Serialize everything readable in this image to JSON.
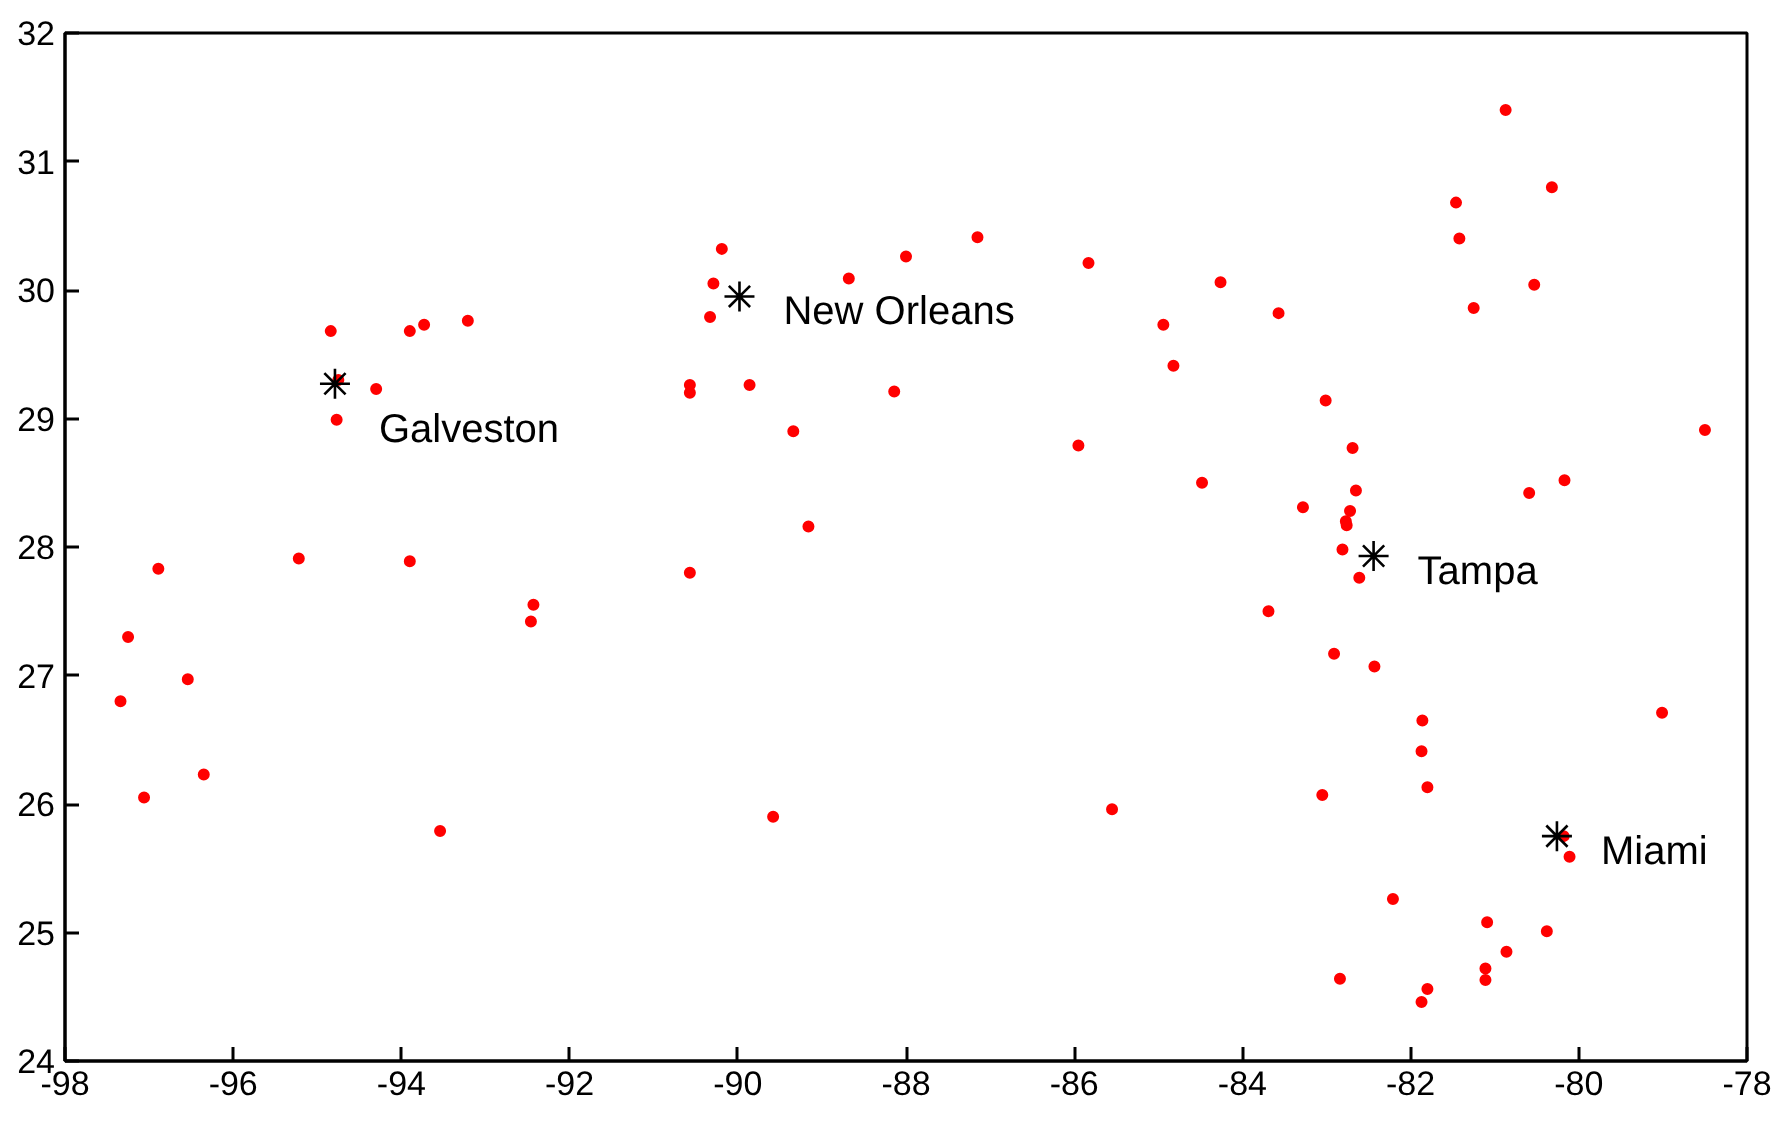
{
  "chart_data": {
    "type": "scatter",
    "xlim": [
      -98,
      -78
    ],
    "ylim": [
      24,
      32
    ],
    "xticks": [
      -98,
      -96,
      -94,
      -92,
      -90,
      -88,
      -86,
      -84,
      -82,
      -80,
      -78
    ],
    "yticks": [
      24,
      25,
      26,
      27,
      28,
      29,
      30,
      31,
      32
    ],
    "grid": false,
    "series": [
      {
        "color": "#ff0000",
        "marker": "circle",
        "x": [
          -97.34,
          -97.25,
          -97.06,
          -96.89,
          -96.54,
          -96.35,
          -95.22,
          -94.84,
          -94.77,
          -94.75,
          -94.3,
          -93.9,
          -93.9,
          -93.73,
          -93.21,
          -92.43,
          -92.46,
          -93.54,
          -90.19,
          -90.29,
          -90.33,
          -90.57,
          -90.57,
          -89.86,
          -89.34,
          -89.16,
          -90.57,
          -89.58,
          -88.68,
          -88.0,
          -87.15,
          -88.14,
          -85.83,
          -85.95,
          -85.55,
          -84.94,
          -84.82,
          -84.26,
          -83.57,
          -84.48,
          -83.01,
          -82.69,
          -83.28,
          -82.65,
          -82.72,
          -82.77,
          -82.76,
          -82.81,
          -82.61,
          -83.69,
          -82.91,
          -82.43,
          -80.87,
          -80.32,
          -81.46,
          -81.42,
          -80.53,
          -81.25,
          -78.5,
          -80.17,
          -80.59,
          -79.01,
          -81.86,
          -81.87,
          -81.8,
          -83.05,
          -80.18,
          -80.11,
          -82.21,
          -81.09,
          -80.38,
          -80.86,
          -81.11,
          -81.11,
          -82.84,
          -81.8,
          -81.87
        ],
        "values": [
          26.8,
          27.3,
          26.05,
          27.83,
          26.97,
          26.23,
          27.91,
          29.68,
          28.99,
          29.3,
          29.23,
          29.68,
          27.89,
          29.73,
          29.76,
          27.55,
          27.42,
          25.79,
          30.32,
          30.05,
          29.79,
          29.26,
          29.2,
          29.26,
          28.9,
          28.16,
          27.8,
          25.9,
          30.09,
          30.26,
          30.41,
          29.21,
          30.21,
          28.79,
          25.96,
          29.73,
          29.41,
          30.06,
          29.82,
          28.5,
          29.14,
          28.77,
          28.31,
          28.44,
          28.28,
          28.2,
          28.17,
          27.98,
          27.76,
          27.5,
          27.17,
          27.07,
          31.4,
          30.8,
          30.68,
          30.4,
          30.04,
          29.86,
          28.91,
          28.52,
          28.42,
          26.71,
          26.65,
          26.41,
          26.13,
          26.07,
          25.75,
          25.59,
          25.26,
          25.08,
          25.01,
          24.85,
          24.72,
          24.63,
          24.64,
          24.56,
          24.46
        ]
      },
      {
        "color": "#000000",
        "marker": "cross",
        "x": [
          -94.79,
          -89.98,
          -82.44,
          -80.26
        ],
        "values": [
          29.27,
          29.95,
          27.93,
          25.75
        ]
      }
    ],
    "annotations": [
      {
        "text": "Galveston",
        "x": -94.79,
        "y": 29.27
      },
      {
        "text": "New Orleans",
        "x": -89.98,
        "y": 29.95
      },
      {
        "text": "Tampa",
        "x": -82.44,
        "y": 27.93
      },
      {
        "text": "Miami",
        "x": -80.26,
        "y": 25.75
      }
    ]
  }
}
